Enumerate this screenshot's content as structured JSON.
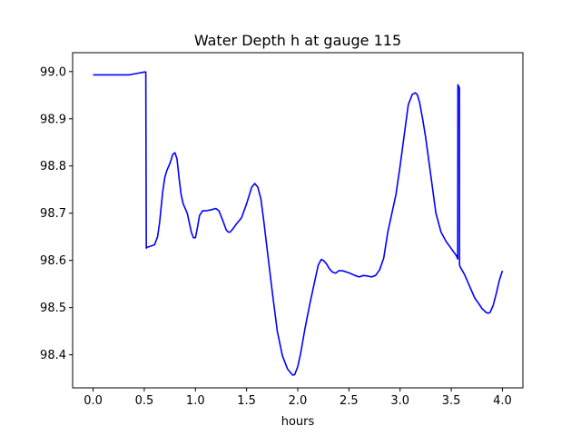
{
  "chart_data": {
    "type": "line",
    "title": "Water Depth h at gauge 115",
    "xlabel": "hours",
    "ylabel": "",
    "xlim": [
      -0.2,
      4.2
    ],
    "ylim": [
      98.33,
      99.04
    ],
    "xticks": [
      0.0,
      0.5,
      1.0,
      1.5,
      2.0,
      2.5,
      3.0,
      3.5,
      4.0
    ],
    "xtick_labels": [
      "0.0",
      "0.5",
      "1.0",
      "1.5",
      "2.0",
      "2.5",
      "3.0",
      "3.5",
      "4.0"
    ],
    "yticks": [
      98.4,
      98.5,
      98.6,
      98.7,
      98.8,
      98.9,
      99.0
    ],
    "ytick_labels": [
      "98.4",
      "98.5",
      "98.6",
      "98.7",
      "98.8",
      "98.9",
      "99.0"
    ],
    "grid": false,
    "series": [
      {
        "color": "#0000ff",
        "x": [
          0.0,
          0.1,
          0.2,
          0.3,
          0.35,
          0.4,
          0.45,
          0.5,
          0.515,
          0.52,
          0.53,
          0.56,
          0.6,
          0.63,
          0.65,
          0.68,
          0.7,
          0.72,
          0.75,
          0.78,
          0.8,
          0.82,
          0.84,
          0.86,
          0.88,
          0.92,
          0.96,
          0.98,
          1.0,
          1.02,
          1.04,
          1.07,
          1.1,
          1.15,
          1.2,
          1.23,
          1.27,
          1.3,
          1.32,
          1.34,
          1.37,
          1.4,
          1.45,
          1.5,
          1.55,
          1.58,
          1.61,
          1.64,
          1.67,
          1.7,
          1.75,
          1.8,
          1.85,
          1.9,
          1.95,
          1.97,
          2.0,
          2.03,
          2.07,
          2.12,
          2.17,
          2.2,
          2.23,
          2.25,
          2.28,
          2.31,
          2.34,
          2.37,
          2.4,
          2.44,
          2.48,
          2.52,
          2.56,
          2.6,
          2.64,
          2.68,
          2.72,
          2.76,
          2.8,
          2.84,
          2.88,
          2.92,
          2.96,
          3.0,
          3.04,
          3.08,
          3.12,
          3.15,
          3.17,
          3.19,
          3.22,
          3.25,
          3.3,
          3.35,
          3.4,
          3.45,
          3.5,
          3.55,
          3.563,
          3.565,
          3.58,
          3.581,
          3.59,
          3.63,
          3.68,
          3.73,
          3.77,
          3.8,
          3.84,
          3.86,
          3.88,
          3.91,
          3.94,
          3.97,
          4.0
        ],
        "y": [
          98.993,
          98.993,
          98.993,
          98.993,
          98.993,
          98.995,
          98.997,
          98.999,
          98.999,
          98.626,
          98.628,
          98.63,
          98.633,
          98.65,
          98.68,
          98.745,
          98.775,
          98.79,
          98.805,
          98.825,
          98.828,
          98.815,
          98.775,
          98.74,
          98.72,
          98.7,
          98.66,
          98.648,
          98.648,
          98.67,
          98.695,
          98.705,
          98.705,
          98.707,
          98.71,
          98.705,
          98.683,
          98.665,
          98.66,
          98.66,
          98.668,
          98.677,
          98.69,
          98.72,
          98.755,
          98.763,
          98.755,
          98.73,
          98.68,
          98.625,
          98.535,
          98.45,
          98.398,
          98.37,
          98.357,
          98.358,
          98.375,
          98.405,
          98.455,
          98.51,
          98.56,
          98.59,
          98.602,
          98.6,
          98.593,
          98.582,
          98.575,
          98.573,
          98.578,
          98.578,
          98.575,
          98.572,
          98.568,
          98.565,
          98.568,
          98.567,
          98.565,
          98.568,
          98.58,
          98.605,
          98.66,
          98.7,
          98.74,
          98.8,
          98.865,
          98.93,
          98.952,
          98.955,
          98.95,
          98.935,
          98.9,
          98.86,
          98.78,
          98.7,
          98.66,
          98.64,
          98.625,
          98.61,
          98.603,
          98.972,
          98.965,
          98.59,
          98.585,
          98.57,
          98.545,
          98.52,
          98.508,
          98.498,
          98.49,
          98.488,
          98.49,
          98.505,
          98.53,
          98.558,
          98.578
        ]
      }
    ]
  }
}
